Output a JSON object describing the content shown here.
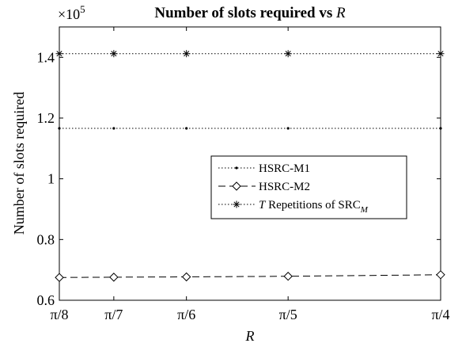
{
  "chart_data": {
    "type": "line",
    "title": "Number of slots required vs R",
    "title_prefix": "Number of slots required vs ",
    "title_var": "R",
    "xlabel": "R",
    "ylabel": "Number of slots required",
    "y_exponent": "×10",
    "y_exponent_power": "5",
    "categories": [
      "π/8",
      "π/7",
      "π/6",
      "π/5",
      "π/4"
    ],
    "x": [
      0.3927,
      0.4488,
      0.5236,
      0.6283,
      0.7854
    ],
    "xlim": [
      0.3927,
      0.7854
    ],
    "ylim": [
      0.6,
      1.5
    ],
    "yticks": [
      0.6,
      0.8,
      1.0,
      1.2,
      1.4
    ],
    "ytick_labels": [
      "0.6",
      "0.8",
      "1",
      "1.2",
      "1.4"
    ],
    "grid": false,
    "legend_position": "center-right",
    "series": [
      {
        "name": "HSRC-M1",
        "values": [
          1.166,
          1.166,
          1.166,
          1.166,
          1.166
        ],
        "marker": "dot",
        "line": "dotted",
        "color": "#000000"
      },
      {
        "name": "HSRC-M2",
        "values": [
          0.675,
          0.676,
          0.677,
          0.679,
          0.684
        ],
        "marker": "diamond",
        "line": "dashed",
        "color": "#000000"
      },
      {
        "name": "T Repetitions of SRC_M",
        "values": [
          1.412,
          1.412,
          1.412,
          1.412,
          1.412
        ],
        "marker": "asterisk",
        "line": "dotted",
        "color": "#000000"
      }
    ],
    "legend": {
      "items": [
        {
          "name": "HSRC-M1"
        },
        {
          "name": "HSRC-M2"
        },
        {
          "name_italic": "T",
          "name_rest": " Repetitions of SRC",
          "name_sub": "M"
        }
      ]
    }
  }
}
